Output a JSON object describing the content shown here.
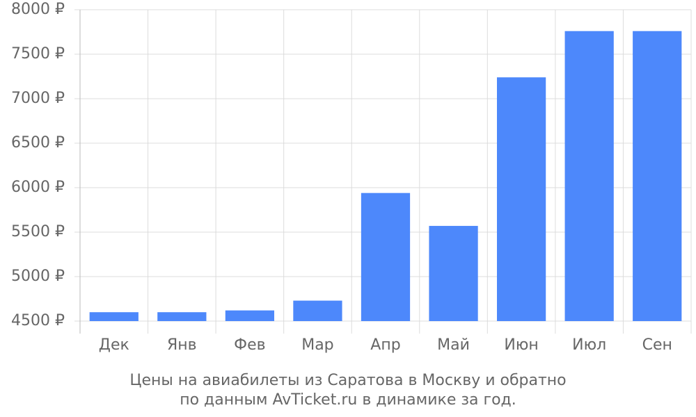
{
  "chart_data": {
    "type": "bar",
    "caption_lines": [
      "Цены на авиабилеты из Саратова в Москву и обратно",
      "по данным AvTicket.ru в динамике за год."
    ],
    "categories": [
      "Дек",
      "Янв",
      "Фев",
      "Мар",
      "Апр",
      "Май",
      "Июн",
      "Июл",
      "Сен"
    ],
    "values": [
      4600,
      4600,
      4620,
      4730,
      5940,
      5570,
      7240,
      7760,
      7760
    ],
    "color": "#4d88fb",
    "ylim": [
      4500,
      8000
    ],
    "yticks": [
      {
        "value": 4500,
        "label": "4500 ₽"
      },
      {
        "value": 5000,
        "label": "5000 ₽"
      },
      {
        "value": 5500,
        "label": "5500 ₽"
      },
      {
        "value": 6000,
        "label": "6000 ₽"
      },
      {
        "value": 6500,
        "label": "6500 ₽"
      },
      {
        "value": 7000,
        "label": "7000 ₽"
      },
      {
        "value": 7500,
        "label": "7500 ₽"
      },
      {
        "value": 8000,
        "label": "8000 ₽"
      }
    ],
    "grid": true
  }
}
